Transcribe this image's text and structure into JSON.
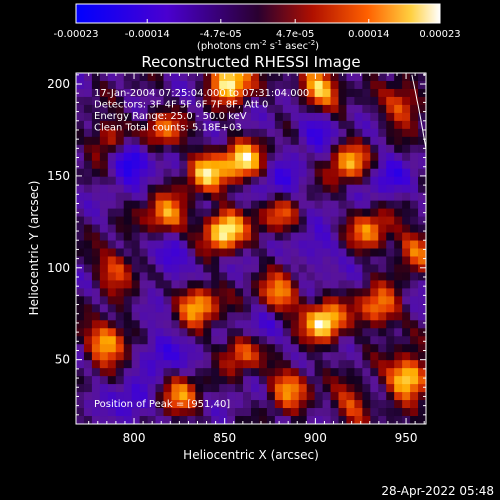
{
  "chart_data": {
    "type": "heatmap",
    "title": "Reconstructed RHESSI Image",
    "xlabel": "Heliocentric X (arcsec)",
    "ylabel": "Heliocentric Y (arcsec)",
    "xlim": [
      768,
      961
    ],
    "ylim": [
      15,
      206
    ],
    "x_ticks": [
      800,
      850,
      900,
      950
    ],
    "y_ticks": [
      50,
      100,
      150,
      200
    ],
    "colorbar": {
      "range": [
        -0.00023,
        0.00023
      ],
      "tick_values": [
        -0.00023,
        -0.00014,
        -4.7e-05,
        4.7e-05,
        0.00014,
        0.00023
      ],
      "tick_labels": [
        "-0.00023",
        "-0.00014",
        "-4.7e-05",
        "4.7e-05",
        "0.00014",
        "0.00023"
      ],
      "units_prefix": "(photons cm",
      "units_exp1": "-2",
      "units_mid1": " s",
      "units_exp2": "-1",
      "units_mid2": " asec",
      "units_exp3": "-2",
      "units_suffix": ")"
    },
    "info_lines": [
      "17-Jan-2004 07:25:04.000 to 07:31:04.000",
      "Detectors: 3F 4F 5F 6F 7F 8F, Att 0",
      "Energy Range: 25.0 - 50.0 keV",
      "Clean     Total counts: 5.18E+03"
    ],
    "peak_label": "Position of Peak = [951,40]",
    "peak": [
      951,
      40
    ],
    "grid_size": [
      44,
      44
    ],
    "bright_spots": [
      {
        "x": 853,
        "y": 202,
        "v": 1.0
      },
      {
        "x": 902,
        "y": 198,
        "v": 0.85
      },
      {
        "x": 948,
        "y": 188,
        "v": 0.6
      },
      {
        "x": 815,
        "y": 175,
        "v": 0.55
      },
      {
        "x": 860,
        "y": 158,
        "v": 0.85
      },
      {
        "x": 840,
        "y": 152,
        "v": 0.75
      },
      {
        "x": 918,
        "y": 158,
        "v": 0.7
      },
      {
        "x": 787,
        "y": 170,
        "v": 0.55
      },
      {
        "x": 850,
        "y": 120,
        "v": 0.95
      },
      {
        "x": 818,
        "y": 128,
        "v": 0.7
      },
      {
        "x": 880,
        "y": 128,
        "v": 0.5
      },
      {
        "x": 930,
        "y": 120,
        "v": 0.6
      },
      {
        "x": 955,
        "y": 110,
        "v": 0.55
      },
      {
        "x": 790,
        "y": 100,
        "v": 0.55
      },
      {
        "x": 835,
        "y": 80,
        "v": 0.75
      },
      {
        "x": 880,
        "y": 85,
        "v": 0.65
      },
      {
        "x": 905,
        "y": 70,
        "v": 0.95
      },
      {
        "x": 935,
        "y": 78,
        "v": 0.7
      },
      {
        "x": 785,
        "y": 60,
        "v": 0.8
      },
      {
        "x": 860,
        "y": 55,
        "v": 0.6
      },
      {
        "x": 951,
        "y": 40,
        "v": 1.0
      },
      {
        "x": 825,
        "y": 30,
        "v": 0.55
      },
      {
        "x": 885,
        "y": 35,
        "v": 0.65
      },
      {
        "x": 920,
        "y": 25,
        "v": 0.5
      }
    ],
    "dark_spots": [
      {
        "x": 798,
        "y": 160,
        "v": 1.0
      },
      {
        "x": 900,
        "y": 175,
        "v": 0.6
      },
      {
        "x": 880,
        "y": 145,
        "v": 0.55
      },
      {
        "x": 820,
        "y": 105,
        "v": 0.6
      },
      {
        "x": 900,
        "y": 110,
        "v": 0.5
      },
      {
        "x": 815,
        "y": 55,
        "v": 0.65
      },
      {
        "x": 870,
        "y": 65,
        "v": 0.5
      },
      {
        "x": 940,
        "y": 150,
        "v": 0.5
      },
      {
        "x": 800,
        "y": 25,
        "v": 0.55
      }
    ],
    "limb_arc": {
      "cx": 0,
      "cy": 0,
      "r": 975
    }
  },
  "footer": {
    "date": "28-Apr-2022 05:48"
  }
}
